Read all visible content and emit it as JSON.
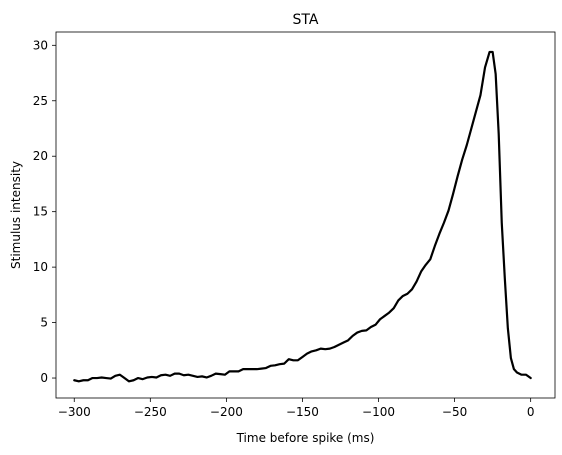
{
  "chart_data": {
    "type": "line",
    "title": "STA",
    "xlabel": "Time before spike (ms)",
    "ylabel": "Stimulus intensity",
    "xlim": [
      -312,
      16
    ],
    "ylim": [
      -1.8,
      31.2
    ],
    "xticks": [
      -300,
      -250,
      -200,
      -150,
      -100,
      -50,
      0
    ],
    "yticks": [
      0,
      5,
      10,
      15,
      20,
      25,
      30
    ],
    "xtick_labels": [
      "−300",
      "−250",
      "−200",
      "−150",
      "−100",
      "−50",
      "0"
    ],
    "ytick_labels": [
      "0",
      "5",
      "10",
      "15",
      "20",
      "25",
      "30"
    ],
    "grid": false,
    "legend": "none",
    "series": [
      {
        "color": "#000000",
        "x": [
          -300,
          -297,
          -294,
          -291,
          -288,
          -285,
          -282,
          -279,
          -276,
          -273,
          -270,
          -267,
          -264,
          -261,
          -258,
          -255,
          -252,
          -249,
          -246,
          -243,
          -240,
          -237,
          -234,
          -231,
          -228,
          -225,
          -222,
          -219,
          -216,
          -213,
          -210,
          -207,
          -204,
          -201,
          -198,
          -195,
          -192,
          -189,
          -186,
          -183,
          -180,
          -177,
          -174,
          -171,
          -168,
          -165,
          -162,
          -159,
          -156,
          -153,
          -150,
          -147,
          -144,
          -141,
          -138,
          -135,
          -132,
          -129,
          -126,
          -123,
          -120,
          -117,
          -114,
          -111,
          -108,
          -105,
          -102,
          -99,
          -96,
          -93,
          -90,
          -87,
          -84,
          -81,
          -78,
          -75,
          -72,
          -69,
          -66,
          -63,
          -60,
          -57,
          -54,
          -51,
          -48,
          -45,
          -42,
          -39,
          -36,
          -33,
          -30,
          -27,
          -25,
          -23,
          -21,
          -19,
          -17,
          -15,
          -13,
          -11,
          -9,
          -6,
          -3,
          0
        ],
        "y": [
          -0.2,
          -0.3,
          -0.2,
          -0.2,
          0.0,
          0.0,
          0.05,
          0.0,
          -0.05,
          0.2,
          0.3,
          0.0,
          -0.3,
          -0.2,
          0.0,
          -0.1,
          0.05,
          0.1,
          0.05,
          0.25,
          0.3,
          0.2,
          0.4,
          0.4,
          0.25,
          0.3,
          0.2,
          0.1,
          0.15,
          0.05,
          0.2,
          0.4,
          0.35,
          0.3,
          0.6,
          0.6,
          0.6,
          0.8,
          0.8,
          0.8,
          0.8,
          0.85,
          0.9,
          1.1,
          1.15,
          1.25,
          1.3,
          1.7,
          1.6,
          1.6,
          1.9,
          2.2,
          2.4,
          2.5,
          2.65,
          2.6,
          2.65,
          2.8,
          3.0,
          3.2,
          3.4,
          3.8,
          4.1,
          4.25,
          4.3,
          4.6,
          4.8,
          5.3,
          5.6,
          5.9,
          6.3,
          7.0,
          7.4,
          7.6,
          8.0,
          8.7,
          9.6,
          10.2,
          10.7,
          11.9,
          13.0,
          14.0,
          15.1,
          16.6,
          18.2,
          19.7,
          21.0,
          22.5,
          24.0,
          25.5,
          28.0,
          29.4,
          29.4,
          27.4,
          22.0,
          14.0,
          9.0,
          4.5,
          1.8,
          0.8,
          0.5,
          0.3,
          0.3,
          0.0
        ]
      }
    ]
  }
}
